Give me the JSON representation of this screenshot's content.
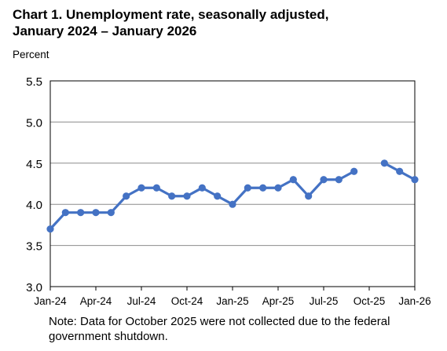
{
  "chart_data": {
    "type": "line",
    "title_line1": "Chart 1. Unemployment rate, seasonally adjusted,",
    "title_line2": "January 2024 – January 2026",
    "ylabel": "Percent",
    "ylim": [
      3.0,
      5.5
    ],
    "yticks": [
      "3.0",
      "3.5",
      "4.0",
      "4.5",
      "5.0",
      "5.5"
    ],
    "xticks": [
      {
        "label": "Jan-24",
        "index": 0
      },
      {
        "label": "Apr-24",
        "index": 3
      },
      {
        "label": "Jul-24",
        "index": 6
      },
      {
        "label": "Oct-24",
        "index": 9
      },
      {
        "label": "Jan-25",
        "index": 12
      },
      {
        "label": "Apr-25",
        "index": 15
      },
      {
        "label": "Jul-25",
        "index": 18
      },
      {
        "label": "Oct-25",
        "index": 21
      },
      {
        "label": "Jan-26",
        "index": 24
      }
    ],
    "grid": true,
    "color": "#4472C4",
    "series": [
      {
        "x": [
          "Jan-24",
          "Feb-24",
          "Mar-24",
          "Apr-24",
          "May-24",
          "Jun-24",
          "Jul-24",
          "Aug-24",
          "Sep-24",
          "Oct-24",
          "Nov-24",
          "Dec-24",
          "Jan-25",
          "Feb-25",
          "Mar-25",
          "Apr-25",
          "May-25",
          "Jun-25",
          "Jul-25",
          "Aug-25",
          "Sep-25",
          "Oct-25",
          "Nov-25",
          "Dec-25",
          "Jan-26"
        ],
        "values": [
          3.7,
          3.9,
          3.9,
          3.9,
          3.9,
          4.1,
          4.2,
          4.2,
          4.1,
          4.1,
          4.2,
          4.1,
          4.0,
          4.2,
          4.2,
          4.2,
          4.3,
          4.1,
          4.3,
          4.3,
          4.4,
          null,
          4.5,
          4.4,
          4.3
        ]
      }
    ]
  },
  "note_line1": "Note: Data for October 2025 were not collected due to the federal",
  "note_line2": "government shutdown."
}
